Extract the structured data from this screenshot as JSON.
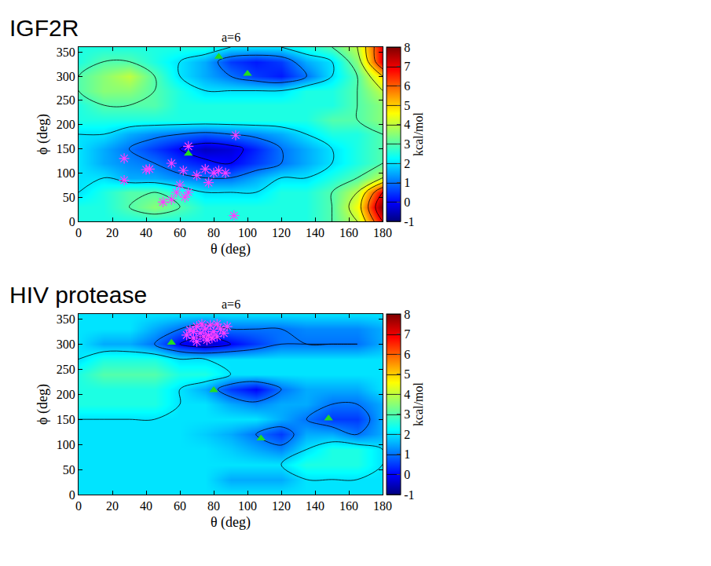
{
  "chart_data": [
    {
      "type": "contour",
      "title": "IGF2R",
      "subtitle": "a=6",
      "x_label": "θ (deg)",
      "y_label": "ϕ (deg)",
      "xlim": [
        0,
        180
      ],
      "ylim": [
        0,
        360
      ],
      "xticks": [
        0,
        20,
        40,
        60,
        80,
        100,
        120,
        140,
        160,
        180
      ],
      "yticks": [
        0,
        50,
        100,
        150,
        200,
        250,
        300,
        350
      ],
      "grid": false,
      "x": [
        0,
        15,
        30,
        45,
        60,
        75,
        90,
        105,
        120,
        135,
        150,
        165,
        180
      ],
      "y": [
        0,
        30,
        60,
        90,
        120,
        150,
        180,
        210,
        240,
        270,
        300,
        330,
        360
      ],
      "z": [
        [
          2.5,
          2.5,
          2.5,
          2.5,
          2.5,
          2.5,
          2.5,
          2.5,
          2.5,
          2.5,
          3,
          4,
          7
        ],
        [
          2.5,
          2.5,
          3,
          3.5,
          3,
          2.5,
          2.5,
          2.5,
          2.5,
          2.5,
          3,
          4.5,
          8
        ],
        [
          2,
          2.5,
          3,
          3,
          2.5,
          2,
          2,
          2,
          2.5,
          2.5,
          3,
          4,
          7
        ],
        [
          2,
          2,
          1.5,
          1.5,
          1.2,
          1,
          1,
          1.5,
          2,
          2,
          2.5,
          3,
          4
        ],
        [
          2,
          1.5,
          1.2,
          1,
          0.5,
          0.2,
          0,
          0.5,
          1,
          1.5,
          2,
          2.5,
          3
        ],
        [
          2,
          1.5,
          1,
          0.5,
          0,
          -0.5,
          -0.3,
          0.3,
          1,
          1.5,
          2,
          2.5,
          3
        ],
        [
          2,
          2,
          1.5,
          1.2,
          1,
          0.8,
          1,
          1.2,
          1.5,
          2,
          2.5,
          2.5,
          3
        ],
        [
          2.5,
          2.5,
          2.5,
          2.5,
          2.5,
          2.5,
          2.5,
          2.5,
          2.5,
          2.5,
          3,
          3,
          3.5
        ],
        [
          2.5,
          3,
          3,
          3,
          2.5,
          2.5,
          2.5,
          2.5,
          2.5,
          2.5,
          2.5,
          3,
          3.5
        ],
        [
          3,
          3.5,
          3.5,
          3,
          2.5,
          2,
          2,
          2,
          2,
          2.5,
          2.5,
          3,
          4
        ],
        [
          3,
          3.5,
          4,
          3,
          2,
          1.5,
          1,
          0.5,
          0.2,
          1,
          2,
          3,
          5
        ],
        [
          2.5,
          3,
          3,
          2.5,
          2,
          1.5,
          0.5,
          0.2,
          0.5,
          1.5,
          2,
          3.5,
          7
        ],
        [
          2.5,
          2.5,
          2.5,
          2.5,
          2.5,
          2.5,
          2,
          2,
          2,
          2.5,
          3,
          4,
          7
        ]
      ],
      "colorbar": {
        "label": "kcal/mol",
        "range": [
          -1,
          8
        ],
        "ticks": [
          -1,
          0,
          1,
          2,
          3,
          4,
          5,
          6,
          7,
          8
        ]
      },
      "series": [
        {
          "type": "scatter",
          "marker": "asterisk-open",
          "color": "#ff40ff",
          "x": [
            27,
            27,
            40,
            42,
            55,
            60,
            62,
            63,
            65,
            70,
            75,
            77,
            80,
            83,
            87,
            93,
            92,
            50,
            55,
            58,
            65
          ],
          "y": [
            130,
            85,
            107,
            108,
            120,
            75,
            105,
            50,
            155,
            95,
            108,
            80,
            100,
            105,
            100,
            178,
            12,
            40,
            45,
            60,
            60
          ]
        },
        {
          "type": "scatter",
          "marker": "triangle-up",
          "color": "#22dd22",
          "x": [
            100,
            83,
            65
          ],
          "y": [
            305,
            340,
            140
          ]
        }
      ]
    },
    {
      "type": "contour",
      "title": "HIV protease",
      "subtitle": "a=6",
      "x_label": "θ (deg)",
      "y_label": "ϕ (deg)",
      "xlim": [
        0,
        180
      ],
      "ylim": [
        0,
        360
      ],
      "xticks": [
        0,
        20,
        40,
        60,
        80,
        100,
        120,
        140,
        160,
        180
      ],
      "yticks": [
        0,
        50,
        100,
        150,
        200,
        250,
        300,
        350
      ],
      "grid": false,
      "x": [
        0,
        15,
        30,
        45,
        60,
        75,
        90,
        105,
        120,
        135,
        150,
        165,
        180
      ],
      "y": [
        0,
        30,
        60,
        90,
        120,
        150,
        180,
        210,
        240,
        270,
        300,
        330,
        360
      ],
      "z": [
        [
          2,
          2,
          2,
          2,
          2,
          2,
          2,
          2,
          2,
          2,
          2,
          2,
          2
        ],
        [
          2,
          2,
          2,
          2,
          2,
          2,
          1.5,
          1.5,
          1.5,
          2,
          2,
          2,
          2
        ],
        [
          2,
          2,
          2,
          2,
          2,
          2,
          2,
          2,
          2,
          2.5,
          2.5,
          2.5,
          2
        ],
        [
          2,
          2,
          2,
          2,
          2,
          2,
          1.8,
          1.5,
          1.2,
          2,
          2.5,
          2.5,
          2
        ],
        [
          2,
          2,
          2,
          2,
          2,
          1.8,
          1.5,
          1,
          0.5,
          1.5,
          1.5,
          1,
          1.5
        ],
        [
          2,
          2,
          2,
          2,
          2,
          2,
          2,
          2,
          1.5,
          1,
          0.5,
          0.5,
          1.5
        ],
        [
          2.5,
          2.5,
          2.5,
          2.5,
          2,
          2,
          1.5,
          1.2,
          1.5,
          1.5,
          1,
          1,
          1.5
        ],
        [
          2.5,
          2.5,
          2.5,
          2.5,
          2,
          1.5,
          0.5,
          0,
          1,
          1.5,
          1.5,
          1.5,
          2
        ],
        [
          2.5,
          3,
          3,
          3,
          2.5,
          2.5,
          2,
          2,
          2,
          2,
          2,
          2,
          2
        ],
        [
          2,
          2.5,
          2.5,
          2.5,
          2,
          2,
          2,
          2,
          2,
          2,
          2,
          2,
          2
        ],
        [
          2,
          1.5,
          1.5,
          1,
          0,
          -0.5,
          0,
          0.5,
          1,
          1,
          1,
          1,
          1.5
        ],
        [
          2,
          2,
          2,
          1.5,
          1,
          0.5,
          1,
          1,
          1,
          1.2,
          1.2,
          1.2,
          1.5
        ],
        [
          2,
          2,
          2,
          2,
          2,
          2,
          2,
          2,
          2,
          2,
          2,
          2,
          2
        ]
      ],
      "colorbar": {
        "label": "kcal/mol",
        "range": [
          -1,
          8
        ],
        "ticks": [
          -1,
          0,
          1,
          2,
          3,
          4,
          5,
          6,
          7,
          8
        ]
      },
      "series": [
        {
          "type": "scatter",
          "marker": "asterisk-open",
          "color": "#ff40ff",
          "x": [
            64,
            66,
            68,
            70,
            72,
            74,
            75,
            77,
            78,
            80,
            82,
            84,
            86,
            88,
            70,
            73,
            76,
            79,
            68,
            82
          ],
          "y": [
            318,
            328,
            312,
            335,
            322,
            315,
            330,
            318,
            338,
            325,
            315,
            330,
            322,
            335,
            305,
            340,
            308,
            312,
            325,
            340
          ]
        },
        {
          "type": "scatter",
          "marker": "triangle-up",
          "color": "#22dd22",
          "x": [
            55,
            80,
            108,
            148
          ],
          "y": [
            303,
            208,
            112,
            152
          ]
        }
      ]
    }
  ]
}
